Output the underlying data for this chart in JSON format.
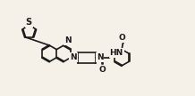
{
  "bg_color": "#f5f0e8",
  "bond_color": "#1a1a1a",
  "atom_color": "#1a1a1a",
  "lw": 1.2,
  "fs": 6.5,
  "figsize": [
    2.18,
    1.08
  ],
  "dpi": 100,
  "xlim": [
    0.0,
    10.5
  ],
  "ylim": [
    0.8,
    5.5
  ]
}
